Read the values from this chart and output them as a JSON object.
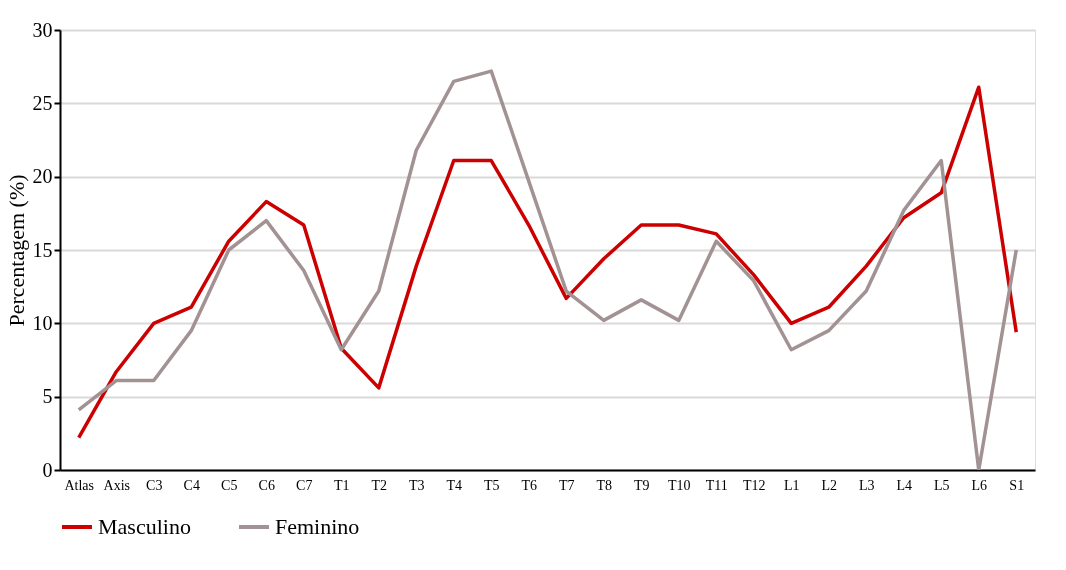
{
  "chart_data": {
    "type": "line",
    "ylabel": "Percentagem (%)",
    "categories": [
      "Atlas",
      "Axis",
      "C3",
      "C4",
      "C5",
      "C6",
      "C7",
      "T1",
      "T2",
      "T3",
      "T4",
      "T5",
      "T6",
      "T7",
      "T8",
      "T9",
      "T10",
      "T11",
      "T12",
      "L1",
      "L2",
      "L3",
      "L4",
      "L5",
      "L6",
      "S1"
    ],
    "series": [
      {
        "name": "Masculino",
        "color": "#cc0000",
        "values": [
          2.2,
          6.7,
          10.0,
          11.1,
          15.6,
          18.3,
          16.7,
          8.3,
          5.6,
          13.9,
          21.1,
          21.1,
          16.7,
          11.7,
          14.4,
          16.7,
          16.7,
          16.1,
          13.3,
          10.0,
          11.1,
          13.9,
          17.2,
          18.9,
          26.1,
          9.4
        ]
      },
      {
        "name": "Feminino",
        "color": "#a39293",
        "values": [
          4.1,
          6.1,
          6.1,
          9.5,
          15.0,
          17.0,
          13.6,
          8.2,
          12.2,
          21.8,
          26.5,
          27.2,
          19.7,
          12.2,
          10.2,
          11.6,
          10.2,
          15.6,
          12.9,
          8.2,
          9.5,
          12.2,
          17.7,
          21.1,
          0,
          15.0
        ]
      }
    ],
    "ylim": [
      0,
      30
    ],
    "yticks": [
      0,
      5,
      10,
      15,
      20,
      25,
      30
    ],
    "grid": "y",
    "legend": "bottom",
    "marker": "none",
    "line_style": "solid"
  }
}
